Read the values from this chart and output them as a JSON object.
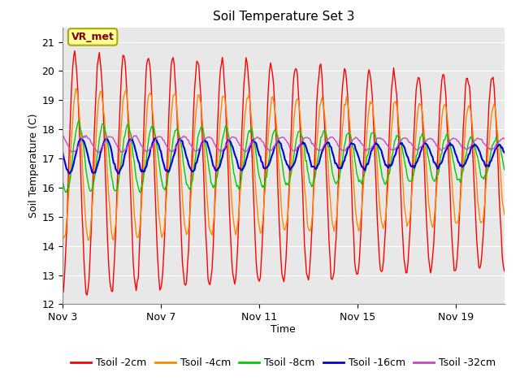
{
  "title": "Soil Temperature Set 3",
  "xlabel": "Time",
  "ylabel": "Soil Temperature (C)",
  "ylim": [
    12.0,
    21.5
  ],
  "yticks": [
    12.0,
    13.0,
    14.0,
    15.0,
    16.0,
    17.0,
    18.0,
    19.0,
    20.0,
    21.0
  ],
  "fig_bg_color": "#ffffff",
  "plot_bg_color": "#e8e8e8",
  "series_colors": {
    "Tsoil -2cm": "#ff0000",
    "Tsoil -4cm": "#ff8800",
    "Tsoil -8cm": "#00cc00",
    "Tsoil -16cm": "#0000dd",
    "Tsoil -32cm": "#cc44cc"
  },
  "x_tick_labels": [
    "Nov 3",
    "Nov 7",
    "Nov 11",
    "Nov 15",
    "Nov 19"
  ],
  "x_tick_positions": [
    0,
    96,
    192,
    288,
    384
  ],
  "n_points": 432,
  "annotation_text": "VR_met",
  "annotation_bg": "#ffff99",
  "annotation_border": "#aaaa00",
  "title_fontsize": 11,
  "axis_label_fontsize": 9,
  "tick_fontsize": 9,
  "legend_fontsize": 9
}
